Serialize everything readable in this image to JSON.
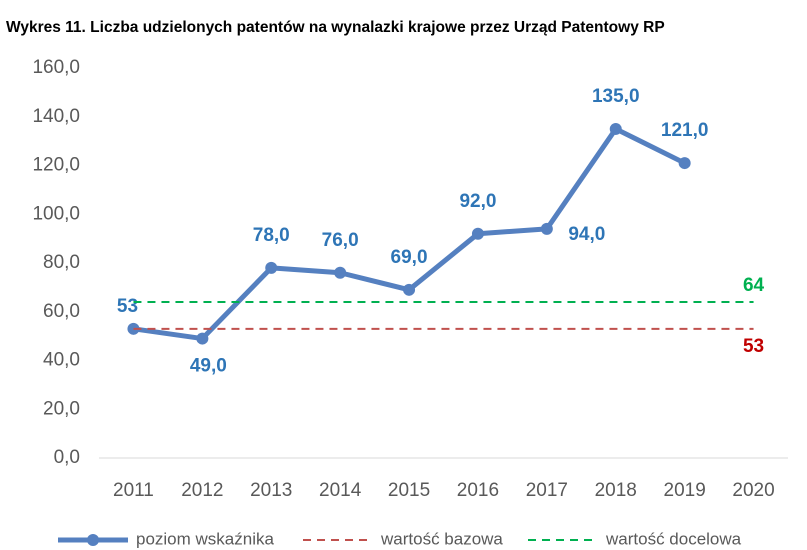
{
  "chart_data": {
    "type": "line",
    "title": "Wykres 11. Liczba udzielonych patentów na wynalazki krajowe przez Urząd Patentowy RP",
    "categories": [
      "2011",
      "2012",
      "2013",
      "2014",
      "2015",
      "2016",
      "2017",
      "2018",
      "2019",
      "2020"
    ],
    "series": [
      {
        "name": "poziom wskaźnika",
        "color": "#5580c0",
        "label_color": "#2e75b6",
        "values": [
          53,
          49,
          78,
          76,
          69,
          92,
          94,
          135,
          121,
          null
        ],
        "value_labels": [
          "53",
          "49,0",
          "78,0",
          "76,0",
          "69,0",
          "92,0",
          "94,0",
          "135,0",
          "121,0",
          null
        ]
      },
      {
        "name": "wartość bazowa",
        "color": "#c0504d",
        "label_color": "#c00000",
        "dashed": true,
        "values": [
          53,
          53,
          53,
          53,
          53,
          53,
          53,
          53,
          53,
          53
        ],
        "value_labels": [
          null,
          null,
          null,
          null,
          null,
          null,
          null,
          null,
          null,
          "53"
        ]
      },
      {
        "name": "wartość docelowa",
        "color": "#00b050",
        "label_color": "#00b050",
        "dashed": true,
        "values": [
          64,
          64,
          64,
          64,
          64,
          64,
          64,
          64,
          64,
          64
        ],
        "value_labels": [
          null,
          null,
          null,
          null,
          null,
          null,
          null,
          null,
          null,
          "64"
        ]
      }
    ],
    "ylim": [
      0,
      160
    ],
    "yticks": [
      {
        "value": 0,
        "label": "0,0"
      },
      {
        "value": 20,
        "label": "20,0"
      },
      {
        "value": 40,
        "label": "40,0"
      },
      {
        "value": 60,
        "label": "60,0"
      },
      {
        "value": 80,
        "label": "80,0"
      },
      {
        "value": 100,
        "label": "100,0"
      },
      {
        "value": 120,
        "label": "120,0"
      },
      {
        "value": 140,
        "label": "140,0"
      },
      {
        "value": 160,
        "label": "160,0"
      }
    ],
    "grid": false,
    "legend": "bottom"
  }
}
